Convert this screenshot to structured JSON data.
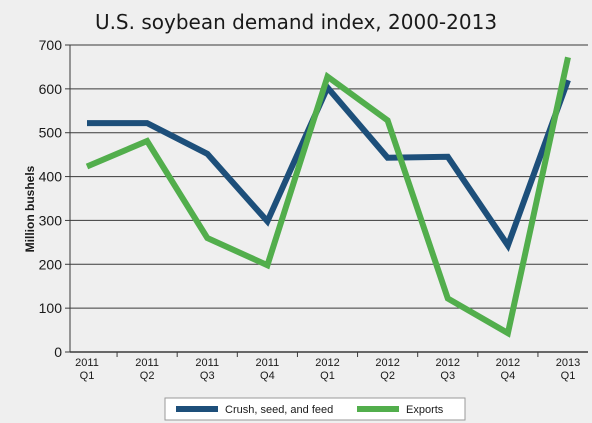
{
  "chart_data": {
    "type": "line",
    "title": "U.S.  soybean demand index, 2000-2013",
    "xlabel": "",
    "ylabel": "Million bushels",
    "ylim": [
      0,
      700
    ],
    "yticks": [
      0,
      100,
      200,
      300,
      400,
      500,
      600,
      700
    ],
    "grid": true,
    "legend_position": "bottom",
    "categories": [
      {
        "year": "2011",
        "quarter": "Q1"
      },
      {
        "year": "2011",
        "quarter": "Q2"
      },
      {
        "year": "2011",
        "quarter": "Q3"
      },
      {
        "year": "2011",
        "quarter": "Q4"
      },
      {
        "year": "2012",
        "quarter": "Q1"
      },
      {
        "year": "2012",
        "quarter": "Q2"
      },
      {
        "year": "2012",
        "quarter": "Q3"
      },
      {
        "year": "2012",
        "quarter": "Q4"
      },
      {
        "year": "2013",
        "quarter": "Q1"
      }
    ],
    "series": [
      {
        "name": "Crush, seed, and feed",
        "color": "#1d4f7a",
        "values": [
          522,
          522,
          452,
          298,
          603,
          443,
          445,
          243,
          620
        ]
      },
      {
        "name": "Exports",
        "color": "#52ae4c",
        "values": [
          423,
          481,
          260,
          198,
          628,
          528,
          122,
          43,
          672
        ]
      }
    ]
  }
}
